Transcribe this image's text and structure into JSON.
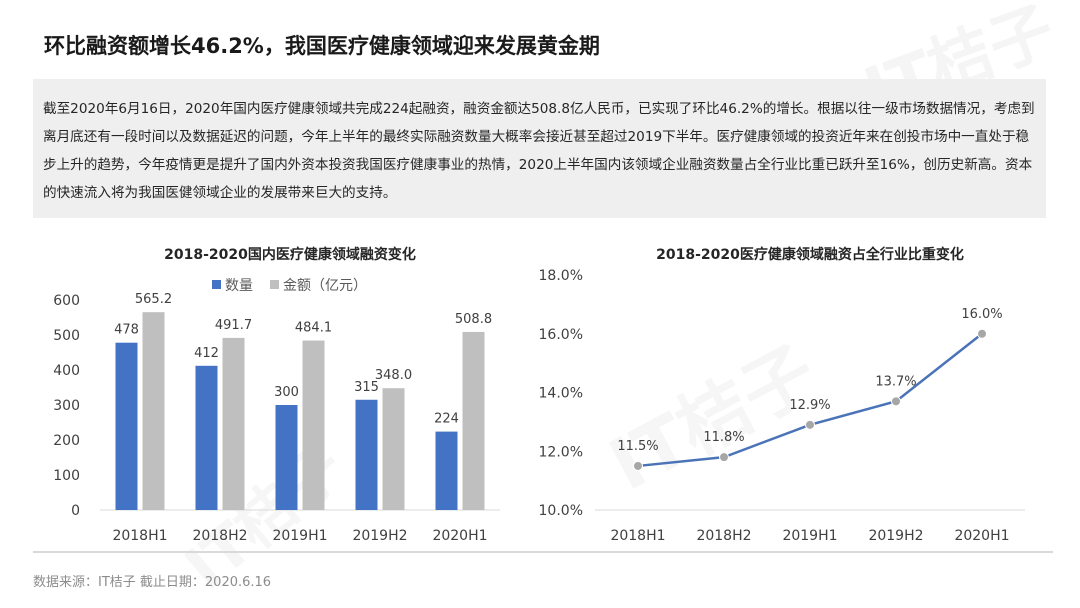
{
  "page": {
    "title": "环比融资额增长46.2%，我国医疗健康领域迎来发展黄金期",
    "summary": "截至2020年6月16日，2020年国内医疗健康领域共完成224起融资，融资金额达508.8亿人民币，已实现了环比46.2%的增长。根据以往一级市场数据情况，考虑到离月底还有一段时间以及数据延迟的问题，今年上半年的最终实际融资数量大概率会接近甚至超过2019下半年。医疗健康领域的投资近年来在创投市场中一直处于稳步上升的趋势，今年疫情更是提升了国内外资本投资我国医疗健康事业的热情，2020上半年国内该领域企业融资数量占全行业比重已跃升至16%，创历史新高。资本的快速流入将为我国医健领域企业的发展带来巨大的支持。",
    "footer": "数据来源：IT桔子   截止日期：2020.6.16",
    "watermark": "IT桔子"
  },
  "colors": {
    "count_bar": "#4472c4",
    "amount_bar": "#bfbfbf",
    "line": "#4a73b8",
    "marker": "#a6a6a6",
    "summary_bg": "#efefef"
  },
  "chart_data": [
    {
      "type": "bar",
      "title": "2018-2020国内医疗健康领域融资变化",
      "categories": [
        "2018H1",
        "2018H2",
        "2019H1",
        "2019H2",
        "2020H1"
      ],
      "series": [
        {
          "name": "数量",
          "values": [
            478,
            412,
            300,
            315,
            224
          ],
          "labels": [
            "478",
            "412",
            "300",
            "315",
            "224"
          ]
        },
        {
          "name": "金额（亿元）",
          "values": [
            565.2,
            491.7,
            484.1,
            348.0,
            508.8
          ],
          "labels": [
            "565.2",
            "491.7",
            "484.1",
            "348.0",
            "508.8"
          ]
        }
      ],
      "ylim": [
        0,
        600
      ],
      "yticks": [
        "0",
        "100",
        "200",
        "300",
        "400",
        "500",
        "600"
      ],
      "legend": "top",
      "grid": false
    },
    {
      "type": "line",
      "title": "2018-2020医疗健康领域融资占全行业比重变化",
      "categories": [
        "2018H1",
        "2018H2",
        "2019H1",
        "2019H2",
        "2020H1"
      ],
      "series": [
        {
          "values": [
            11.5,
            11.8,
            12.9,
            13.7,
            16.0
          ],
          "labels": [
            "11.5%",
            "11.8%",
            "12.9%",
            "13.7%",
            "16.0%"
          ]
        }
      ],
      "ylim": [
        10,
        18
      ],
      "yticks": [
        "10.0%",
        "12.0%",
        "14.0%",
        "16.0%",
        "18.0%"
      ],
      "grid": false
    }
  ]
}
